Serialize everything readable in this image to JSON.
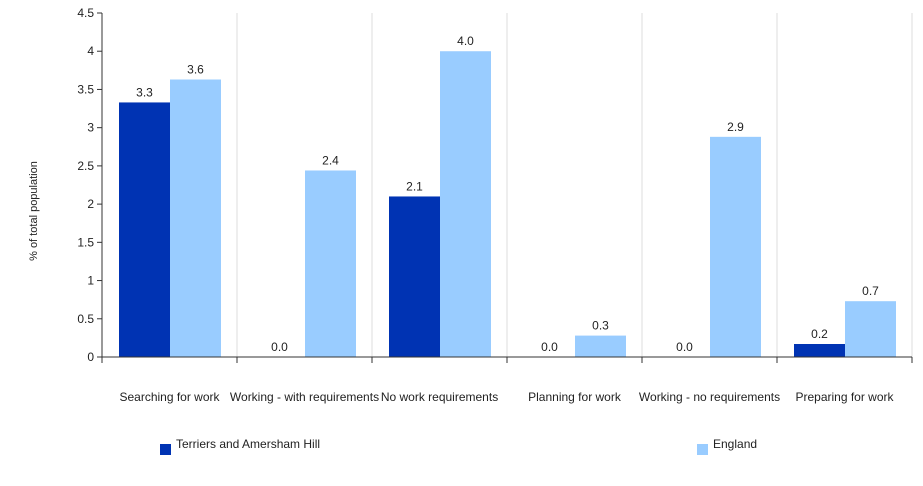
{
  "chart_data": {
    "type": "bar",
    "title": "",
    "xlabel": "",
    "ylabel": "% of total population",
    "ylim": [
      0,
      4.5
    ],
    "yticks": [
      0,
      0.5,
      1,
      1.5,
      2,
      2.5,
      3,
      3.5,
      4,
      4.5
    ],
    "ytick_labels": [
      "0",
      "0.5",
      "1",
      "1.5",
      "2",
      "2.5",
      "3",
      "3.5",
      "4",
      "4.5"
    ],
    "grid": "vertical",
    "legend_position": "bottom",
    "categories": [
      "Searching for work",
      "Working - with requirements",
      "No work requirements",
      "Planning for work",
      "Working - no requirements",
      "Preparing for work"
    ],
    "series": [
      {
        "name": "Terriers and Amersham Hill",
        "color": "#0033b3",
        "values": [
          3.33,
          0.0,
          2.1,
          0.0,
          0.0,
          0.17
        ],
        "labels": [
          "3.3",
          "0.0",
          "2.1",
          "0.0",
          "0.0",
          "0.2"
        ]
      },
      {
        "name": "England",
        "color": "#99ccff",
        "values": [
          3.63,
          2.44,
          4.0,
          0.28,
          2.88,
          0.73
        ],
        "labels": [
          "3.6",
          "2.4",
          "4.0",
          "0.3",
          "2.9",
          "0.7"
        ]
      }
    ]
  }
}
